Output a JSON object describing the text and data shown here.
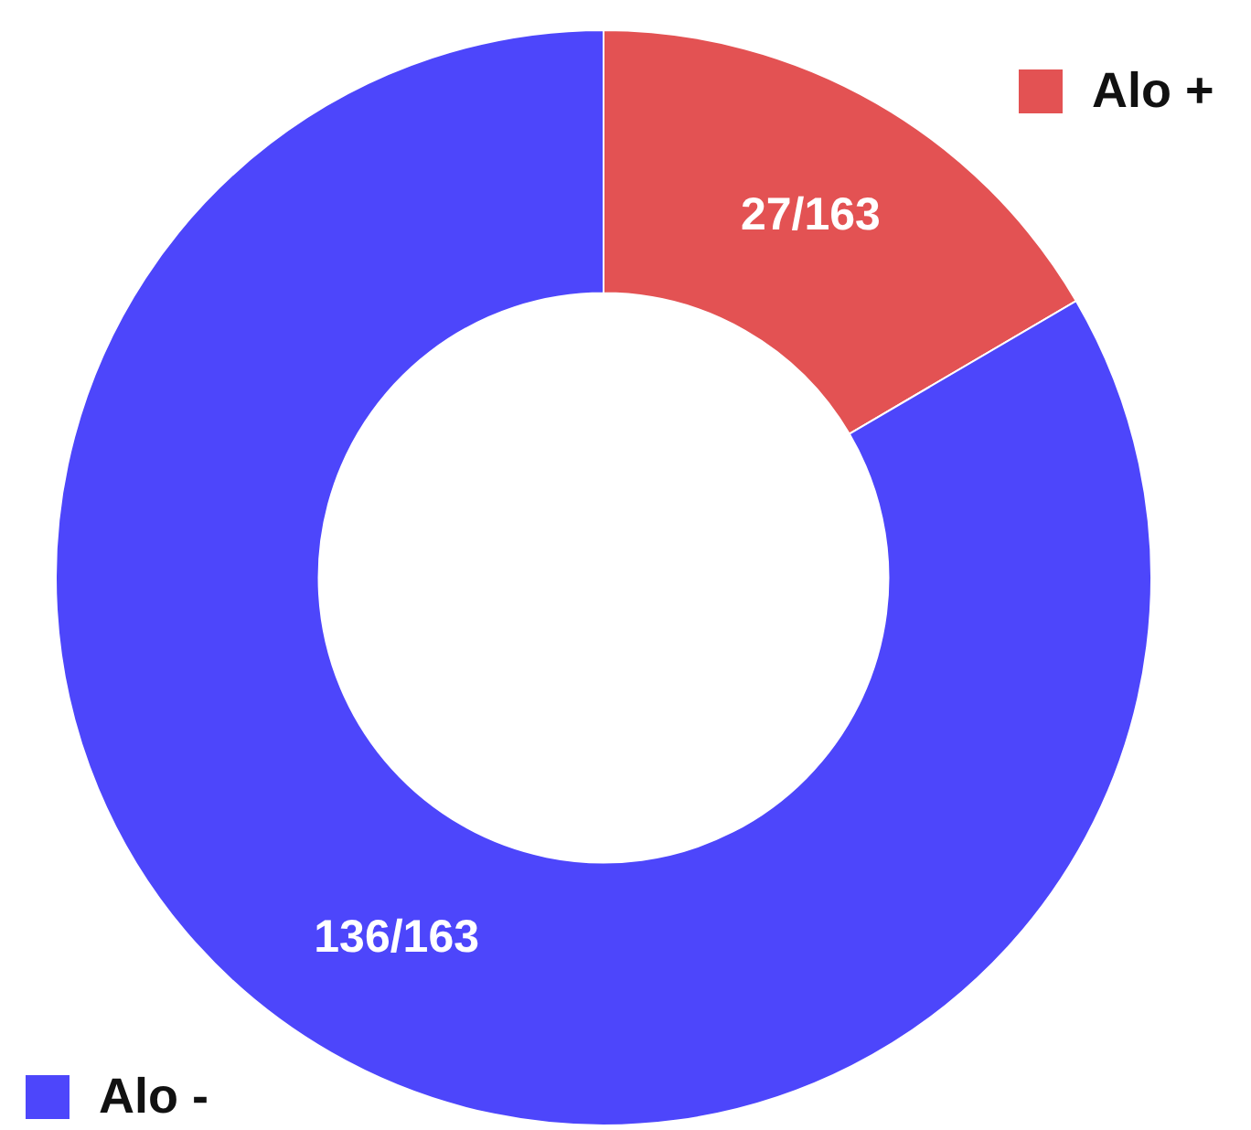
{
  "chart_data": {
    "type": "donut",
    "categories": [
      "Alo +",
      "Alo -"
    ],
    "values": [
      27,
      136
    ],
    "colors": [
      "#e35253",
      "#4d46fb"
    ],
    "value_labels": [
      "27/163",
      "136/163"
    ],
    "legend": "bottom right"
  }
}
